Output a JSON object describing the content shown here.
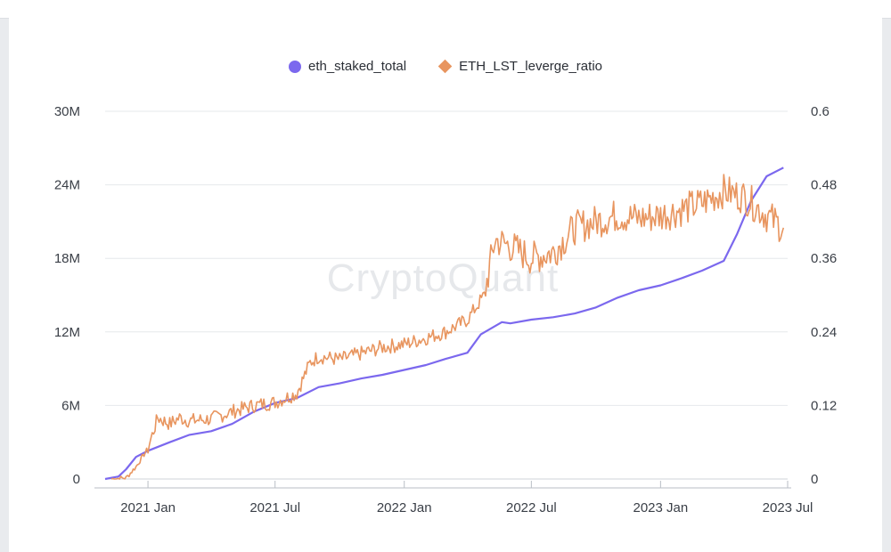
{
  "chart_data": {
    "type": "line",
    "watermark": "CryptoQuant",
    "colors": {
      "eth_staked_total": "#7b68ee",
      "ETH_LST_leverge_ratio": "#e8955f"
    },
    "legend": {
      "placement": "top-center"
    },
    "x_ticks": [
      "2021 Jan",
      "2021 Jul",
      "2022 Jan",
      "2022 Jul",
      "2023 Jan",
      "2023 Jul"
    ],
    "x_range": [
      "2020-11-01",
      "2023-07-01"
    ],
    "y_left": {
      "ticks": [
        "0",
        "6M",
        "12M",
        "18M",
        "24M",
        "30M"
      ],
      "range": [
        0,
        30000000
      ]
    },
    "y_right": {
      "ticks": [
        "0",
        "0.12",
        "0.24",
        "0.36",
        "0.48",
        "0.6"
      ],
      "range": [
        0,
        0.6
      ]
    },
    "grid": true,
    "series": [
      {
        "name": "eth_staked_total",
        "axis": "left",
        "points": [
          [
            "2020-11-01",
            0
          ],
          [
            "2020-11-20",
            200000
          ],
          [
            "2020-12-01",
            800000
          ],
          [
            "2020-12-15",
            1800000
          ],
          [
            "2021-01-01",
            2300000
          ],
          [
            "2021-02-01",
            3000000
          ],
          [
            "2021-03-01",
            3600000
          ],
          [
            "2021-04-01",
            3900000
          ],
          [
            "2021-05-01",
            4500000
          ],
          [
            "2021-06-01",
            5500000
          ],
          [
            "2021-07-01",
            6200000
          ],
          [
            "2021-08-01",
            6600000
          ],
          [
            "2021-09-01",
            7500000
          ],
          [
            "2021-10-01",
            7800000
          ],
          [
            "2021-11-01",
            8200000
          ],
          [
            "2021-12-01",
            8500000
          ],
          [
            "2022-01-01",
            8900000
          ],
          [
            "2022-02-01",
            9300000
          ],
          [
            "2022-03-01",
            9800000
          ],
          [
            "2022-04-01",
            10300000
          ],
          [
            "2022-04-20",
            11800000
          ],
          [
            "2022-05-20",
            12800000
          ],
          [
            "2022-06-01",
            12700000
          ],
          [
            "2022-07-01",
            13000000
          ],
          [
            "2022-08-01",
            13200000
          ],
          [
            "2022-09-01",
            13500000
          ],
          [
            "2022-10-01",
            14000000
          ],
          [
            "2022-11-01",
            14800000
          ],
          [
            "2022-12-01",
            15400000
          ],
          [
            "2023-01-01",
            15800000
          ],
          [
            "2023-02-01",
            16400000
          ],
          [
            "2023-03-01",
            17000000
          ],
          [
            "2023-04-01",
            17800000
          ],
          [
            "2023-04-20",
            20000000
          ],
          [
            "2023-05-10",
            22700000
          ],
          [
            "2023-06-01",
            24700000
          ],
          [
            "2023-06-25",
            25400000
          ]
        ]
      },
      {
        "name": "ETH_LST_leverge_ratio",
        "axis": "right",
        "points": [
          [
            "2020-11-10",
            0
          ],
          [
            "2020-12-01",
            0.002
          ],
          [
            "2020-12-15",
            0.02
          ],
          [
            "2021-01-01",
            0.05
          ],
          [
            "2021-01-15",
            0.1
          ],
          [
            "2021-02-01",
            0.09
          ],
          [
            "2021-02-15",
            0.1
          ],
          [
            "2021-03-01",
            0.095
          ],
          [
            "2021-04-01",
            0.098
          ],
          [
            "2021-05-01",
            0.11
          ],
          [
            "2021-06-01",
            0.12
          ],
          [
            "2021-07-01",
            0.125
          ],
          [
            "2021-08-01",
            0.14
          ],
          [
            "2021-08-20",
            0.19
          ],
          [
            "2021-09-01",
            0.2
          ],
          [
            "2021-10-01",
            0.195
          ],
          [
            "2021-11-01",
            0.205
          ],
          [
            "2021-12-01",
            0.215
          ],
          [
            "2022-01-01",
            0.22
          ],
          [
            "2022-02-01",
            0.23
          ],
          [
            "2022-03-01",
            0.24
          ],
          [
            "2022-04-01",
            0.26
          ],
          [
            "2022-04-25",
            0.3
          ],
          [
            "2022-05-10",
            0.39
          ],
          [
            "2022-06-01",
            0.38
          ],
          [
            "2022-07-01",
            0.36
          ],
          [
            "2022-08-01",
            0.37
          ],
          [
            "2022-09-01",
            0.41
          ],
          [
            "2022-10-01",
            0.42
          ],
          [
            "2022-11-01",
            0.43
          ],
          [
            "2022-12-01",
            0.425
          ],
          [
            "2023-01-01",
            0.43
          ],
          [
            "2023-02-01",
            0.44
          ],
          [
            "2023-03-01",
            0.45
          ],
          [
            "2023-04-01",
            0.47
          ],
          [
            "2023-05-01",
            0.46
          ],
          [
            "2023-06-01",
            0.43
          ],
          [
            "2023-06-25",
            0.41
          ]
        ]
      }
    ]
  }
}
